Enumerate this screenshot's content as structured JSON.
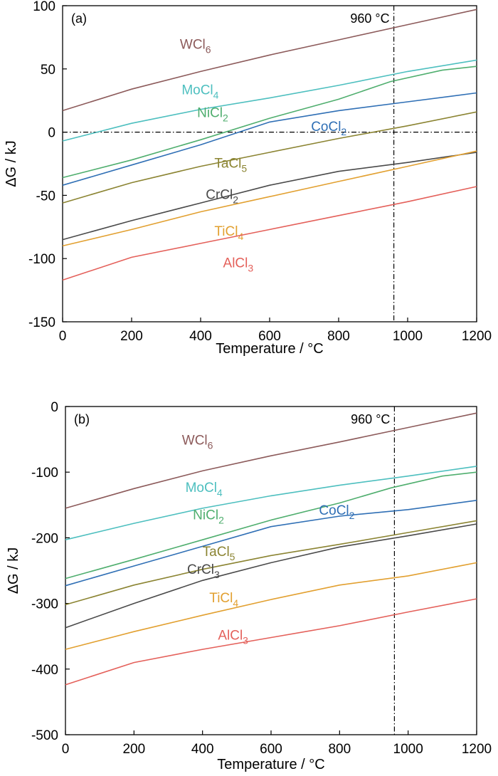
{
  "chart_data": [
    {
      "type": "line",
      "panel_label": "(a)",
      "xlabel": "Temperature / ",
      "xlabel_unit": "°C",
      "ylabel": "ΔG / kJ",
      "xlim": [
        0,
        1200
      ],
      "ylim": [
        -150,
        100
      ],
      "xticks": [
        "0",
        "200",
        "400",
        "600",
        "800",
        "1000",
        "1200"
      ],
      "yticks": [
        "-150",
        "-100",
        "-50",
        "0",
        "50",
        "100"
      ],
      "reference_line": {
        "x": 960,
        "label": "960 °C"
      },
      "zero_line": true,
      "series": [
        {
          "base": "WCl",
          "sub": "6",
          "color": "#8c5a5a",
          "x": [
            0,
            200,
            400,
            600,
            800,
            1000,
            1200
          ],
          "y": [
            17,
            34,
            48,
            61,
            73,
            85,
            97
          ],
          "label_at": [
            340,
            66
          ]
        },
        {
          "base": "MoCl",
          "sub": "4",
          "color": "#4dbfbf",
          "x": [
            0,
            200,
            400,
            600,
            800,
            1000,
            1200
          ],
          "y": [
            -7,
            7,
            18,
            27,
            37,
            48,
            57
          ],
          "label_at": [
            345,
            30
          ]
        },
        {
          "base": "NiCl",
          "sub": "2",
          "color": "#4fae6e",
          "x": [
            0,
            200,
            400,
            600,
            800,
            950,
            1100,
            1200
          ],
          "y": [
            -36,
            -22,
            -6,
            11,
            26,
            40,
            49,
            52
          ],
          "label_at": [
            390,
            12
          ]
        },
        {
          "base": "CoCl",
          "sub": "2",
          "color": "#2f6fb5",
          "x": [
            0,
            200,
            400,
            600,
            800,
            1000,
            1200
          ],
          "y": [
            -42,
            -26,
            -10,
            8,
            17,
            24,
            31
          ],
          "label_at": [
            720,
            1
          ]
        },
        {
          "base": "TaCl",
          "sub": "5",
          "color": "#8b8432",
          "x": [
            0,
            200,
            400,
            600,
            800,
            1000,
            1200
          ],
          "y": [
            -56,
            -40,
            -27,
            -16,
            -5,
            5,
            16
          ],
          "label_at": [
            440,
            -28
          ]
        },
        {
          "base": "CrCl",
          "sub": "2",
          "color": "#4a4a4a",
          "x": [
            0,
            200,
            400,
            600,
            800,
            1000,
            1200
          ],
          "y": [
            -85,
            -70,
            -56,
            -42,
            -31,
            -24,
            -16
          ],
          "label_at": [
            415,
            -53
          ]
        },
        {
          "base": "TiCl",
          "sub": "4",
          "color": "#e2a030",
          "x": [
            0,
            200,
            400,
            600,
            800,
            1000,
            1200
          ],
          "y": [
            -90,
            -77,
            -63,
            -51,
            -39,
            -27,
            -15
          ],
          "label_at": [
            440,
            -82
          ]
        },
        {
          "base": "AlCl",
          "sub": "3",
          "color": "#e4605a",
          "x": [
            0,
            200,
            400,
            600,
            800,
            1000,
            1200
          ],
          "y": [
            -117,
            -99,
            -88,
            -77,
            -66,
            -55,
            -43
          ],
          "label_at": [
            465,
            -107
          ]
        }
      ]
    },
    {
      "type": "line",
      "panel_label": "(b)",
      "xlabel": "Temperature / ",
      "xlabel_unit": "°C",
      "ylabel": "ΔG / kJ",
      "xlim": [
        0,
        1200
      ],
      "ylim": [
        -500,
        0
      ],
      "xticks": [
        "0",
        "200",
        "400",
        "600",
        "800",
        "1000",
        "1200"
      ],
      "yticks": [
        "-500",
        "-400",
        "-300",
        "-200",
        "-100",
        "0"
      ],
      "reference_line": {
        "x": 960,
        "label": "960 °C"
      },
      "zero_line": false,
      "series": [
        {
          "base": "WCl",
          "sub": "6",
          "color": "#8c5a5a",
          "x": [
            0,
            200,
            400,
            600,
            800,
            1000,
            1200
          ],
          "y": [
            -155,
            -125,
            -98,
            -75,
            -54,
            -32,
            -10
          ],
          "label_at": [
            340,
            -58
          ]
        },
        {
          "base": "MoCl",
          "sub": "4",
          "color": "#4dbfbf",
          "x": [
            0,
            200,
            400,
            600,
            800,
            1000,
            1200
          ],
          "y": [
            -203,
            -178,
            -155,
            -136,
            -120,
            -106,
            -91
          ],
          "label_at": [
            350,
            -130
          ]
        },
        {
          "base": "NiCl",
          "sub": "2",
          "color": "#4fae6e",
          "x": [
            0,
            200,
            400,
            600,
            800,
            950,
            1100,
            1200
          ],
          "y": [
            -262,
            -233,
            -203,
            -173,
            -147,
            -124,
            -106,
            -100
          ],
          "label_at": [
            372,
            -172
          ]
        },
        {
          "base": "CoCl",
          "sub": "2",
          "color": "#2f6fb5",
          "x": [
            0,
            200,
            400,
            600,
            800,
            1000,
            1200
          ],
          "y": [
            -273,
            -243,
            -213,
            -183,
            -167,
            -157,
            -143
          ],
          "label_at": [
            740,
            -165
          ]
        },
        {
          "base": "TaCl",
          "sub": "5",
          "color": "#8b8432",
          "x": [
            0,
            200,
            400,
            600,
            800,
            1000,
            1200
          ],
          "y": [
            -302,
            -272,
            -248,
            -227,
            -210,
            -192,
            -174
          ],
          "label_at": [
            400,
            -228
          ]
        },
        {
          "base": "CrCl",
          "sub": "3",
          "color": "#4a4a4a",
          "x": [
            0,
            200,
            400,
            600,
            800,
            1000,
            1200
          ],
          "y": [
            -337,
            -300,
            -265,
            -238,
            -214,
            -197,
            -179
          ],
          "label_at": [
            355,
            -255
          ]
        },
        {
          "base": "TiCl",
          "sub": "4",
          "color": "#e2a030",
          "x": [
            0,
            200,
            400,
            600,
            800,
            1000,
            1200
          ],
          "y": [
            -370,
            -343,
            -318,
            -294,
            -272,
            -258,
            -238
          ],
          "label_at": [
            420,
            -298
          ]
        },
        {
          "base": "AlCl",
          "sub": "3",
          "color": "#e4605a",
          "x": [
            0,
            200,
            400,
            600,
            800,
            1000,
            1200
          ],
          "y": [
            -424,
            -390,
            -370,
            -352,
            -334,
            -313,
            -293
          ],
          "label_at": [
            445,
            -355
          ]
        }
      ]
    }
  ]
}
